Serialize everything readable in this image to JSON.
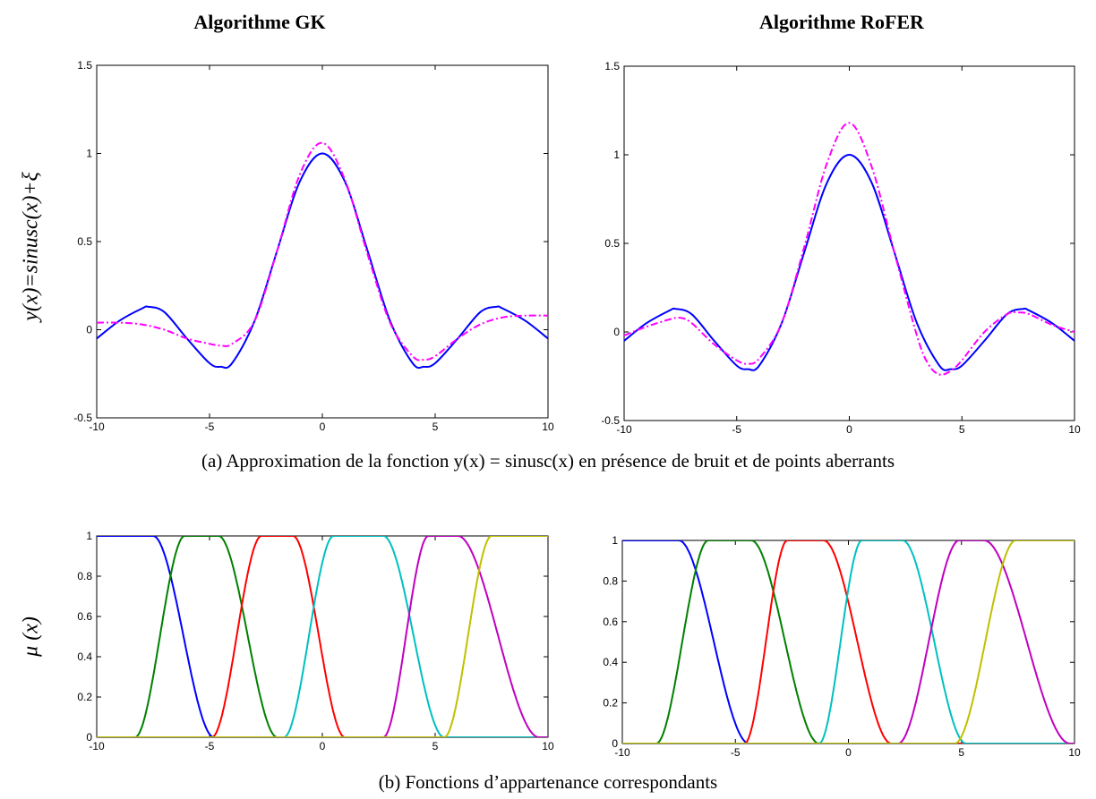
{
  "panel_titles": [
    "Algorithme GK",
    "Algorithme RoFER"
  ],
  "caption_a": "(a) Approximation de la fonction y(x) = sinusc(x) en présence de bruit et de points aberrants",
  "caption_b": "(b) Fonctions d’appartenance correspondants",
  "ylabel_top": "y(x)=sinusc(x)+ξ",
  "ylabel_bottom": "μ (x)",
  "colors": {
    "true_curve": "#0000ff",
    "approx_curve": "#ff00ff",
    "mf": [
      "#0000ff",
      "#008000",
      "#ff0000",
      "#00c0c0",
      "#c000c0",
      "#c0c000"
    ]
  },
  "chart_data": [
    {
      "type": "line",
      "id": "gk-approx",
      "title": "Algorithme GK",
      "xlim": [
        -10,
        10
      ],
      "ylim": [
        -0.5,
        1.5
      ],
      "xticks": [
        -10,
        -5,
        0,
        5,
        10
      ],
      "yticks": [
        -0.5,
        0,
        0.5,
        1,
        1.5
      ],
      "ytick_labels": [
        "-0.5",
        "0",
        "0.5",
        "1",
        "1.5"
      ],
      "series": [
        {
          "x": [
            -10,
            -9,
            -8,
            -7.7,
            -7,
            -6,
            -5,
            -4.5,
            -4,
            -3,
            -2,
            -1,
            0,
            1,
            2,
            3,
            4,
            4.5,
            5,
            6,
            7,
            7.7,
            8,
            9,
            10
          ],
          "y": [
            -0.05,
            0.05,
            0.12,
            0.13,
            0.1,
            -0.05,
            -0.19,
            -0.21,
            -0.19,
            0.05,
            0.45,
            0.84,
            1.0,
            0.84,
            0.45,
            0.05,
            -0.19,
            -0.21,
            -0.19,
            -0.05,
            0.1,
            0.13,
            0.12,
            0.05,
            -0.05
          ],
          "style": "solid",
          "color": "#0000ff"
        },
        {
          "x": [
            -10,
            -9,
            -8,
            -7,
            -6,
            -5,
            -4.5,
            -4,
            -3,
            -2,
            -1,
            0,
            1,
            2,
            3,
            4,
            4.5,
            5,
            6,
            7,
            8,
            9,
            10
          ],
          "y": [
            0.04,
            0.04,
            0.03,
            0.0,
            -0.05,
            -0.08,
            -0.09,
            -0.08,
            0.05,
            0.45,
            0.88,
            1.06,
            0.85,
            0.43,
            0.04,
            -0.15,
            -0.17,
            -0.15,
            -0.05,
            0.03,
            0.07,
            0.08,
            0.08
          ],
          "style": "dashdot",
          "color": "#ff00ff"
        }
      ]
    },
    {
      "type": "line",
      "id": "rofer-approx",
      "title": "Algorithme RoFER",
      "xlim": [
        -10,
        10
      ],
      "ylim": [
        -0.5,
        1.5
      ],
      "xticks": [
        -10,
        -5,
        0,
        5,
        10
      ],
      "yticks": [
        -0.5,
        0,
        0.5,
        1,
        1.5
      ],
      "ytick_labels": [
        "-0.5",
        "0",
        "0.5",
        "1",
        "1.5"
      ],
      "series": [
        {
          "x": [
            -10,
            -9,
            -8,
            -7.7,
            -7,
            -6,
            -5,
            -4.5,
            -4,
            -3,
            -2,
            -1,
            0,
            1,
            2,
            3,
            4,
            4.5,
            5,
            6,
            7,
            7.7,
            8,
            9,
            10
          ],
          "y": [
            -0.05,
            0.05,
            0.12,
            0.13,
            0.1,
            -0.05,
            -0.19,
            -0.21,
            -0.19,
            0.05,
            0.45,
            0.84,
            1.0,
            0.84,
            0.45,
            0.05,
            -0.19,
            -0.21,
            -0.19,
            -0.05,
            0.1,
            0.13,
            0.12,
            0.05,
            -0.05
          ],
          "style": "solid",
          "color": "#0000ff"
        },
        {
          "x": [
            -10,
            -9,
            -8,
            -7.5,
            -7,
            -6,
            -5,
            -4.5,
            -4,
            -3,
            -2,
            -1,
            0,
            1,
            2,
            3,
            3.5,
            4,
            4.5,
            5,
            6,
            7,
            7.5,
            8,
            9,
            10
          ],
          "y": [
            -0.02,
            0.03,
            0.07,
            0.08,
            0.05,
            -0.07,
            -0.16,
            -0.18,
            -0.15,
            0.05,
            0.48,
            0.95,
            1.18,
            0.93,
            0.45,
            -0.02,
            -0.18,
            -0.24,
            -0.22,
            -0.16,
            0.0,
            0.1,
            0.11,
            0.1,
            0.04,
            0.0
          ],
          "style": "dashdot",
          "color": "#ff00ff"
        }
      ]
    },
    {
      "type": "line",
      "id": "gk-membership",
      "xlim": [
        -10,
        10
      ],
      "ylim": [
        0,
        1
      ],
      "xticks": [
        -10,
        -5,
        0,
        5,
        10
      ],
      "yticks": [
        0,
        0.2,
        0.4,
        0.6,
        0.8,
        1
      ],
      "ytick_labels": [
        "0",
        "0.2",
        "0.4",
        "0.6",
        "0.8",
        "1"
      ],
      "series": [
        {
          "color": "#0000ff",
          "mf": [
            -20,
            -20,
            -7.5,
            -4.8
          ]
        },
        {
          "color": "#008000",
          "mf": [
            -8.3,
            -6.1,
            -4.6,
            -2.0
          ]
        },
        {
          "color": "#ff0000",
          "mf": [
            -4.9,
            -2.7,
            -1.3,
            1.0
          ]
        },
        {
          "color": "#00c0c0",
          "mf": [
            -1.7,
            0.5,
            2.7,
            5.4
          ]
        },
        {
          "color": "#c000c0",
          "mf": [
            2.7,
            4.7,
            6.0,
            9.6
          ]
        },
        {
          "color": "#c0c000",
          "mf": [
            5.4,
            7.5,
            20,
            20
          ]
        }
      ]
    },
    {
      "type": "line",
      "id": "rofer-membership",
      "xlim": [
        -10,
        10
      ],
      "ylim": [
        0,
        1
      ],
      "xticks": [
        -10,
        -5,
        0,
        5,
        10
      ],
      "yticks": [
        0,
        0.2,
        0.4,
        0.6,
        0.8,
        1
      ],
      "ytick_labels": [
        "0",
        "0.2",
        "0.4",
        "0.6",
        "0.8",
        "1"
      ],
      "series": [
        {
          "color": "#0000ff",
          "mf": [
            -20,
            -20,
            -7.5,
            -4.4
          ]
        },
        {
          "color": "#008000",
          "mf": [
            -8.5,
            -6.2,
            -4.3,
            -1.3
          ]
        },
        {
          "color": "#ff0000",
          "mf": [
            -4.6,
            -2.7,
            -1.1,
            1.9
          ]
        },
        {
          "color": "#00c0c0",
          "mf": [
            -1.3,
            0.6,
            2.4,
            5.2
          ]
        },
        {
          "color": "#c000c0",
          "mf": [
            2.2,
            4.9,
            6.0,
            9.8
          ]
        },
        {
          "color": "#c0c000",
          "mf": [
            4.7,
            7.4,
            20,
            20
          ]
        }
      ]
    }
  ]
}
